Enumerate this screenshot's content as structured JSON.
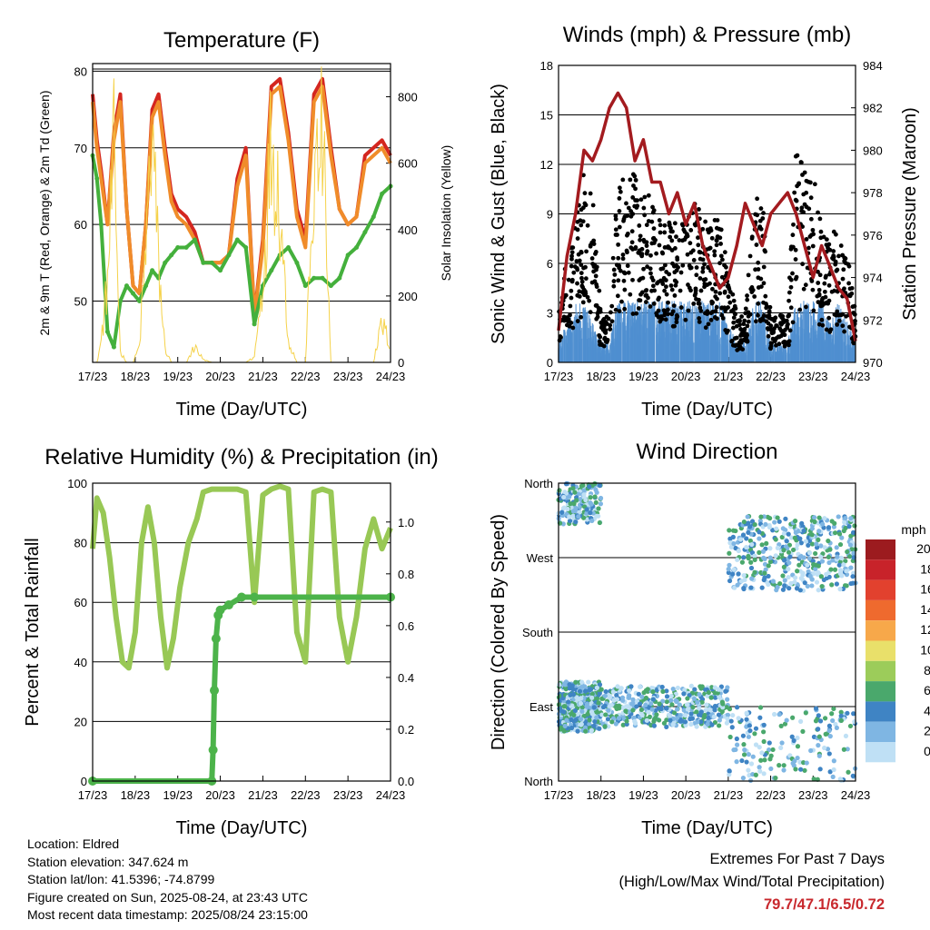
{
  "x_ticks": [
    "17/23",
    "18/23",
    "19/23",
    "20/23",
    "21/23",
    "22/23",
    "23/23",
    "24/23"
  ],
  "x_title": "Time (Day/UTC)",
  "chart_data": [
    {
      "type": "line",
      "title": "Temperature (F)",
      "xlabel": "Time (Day/UTC)",
      "ylabel": "2m & 9m T (Red, Orange) & 2m Td (Green)",
      "y2label": "Solar Insolation (Yellow)",
      "ylim": [
        42,
        81
      ],
      "y2lim": [
        0,
        900
      ],
      "yticks": [
        50,
        60,
        70,
        80
      ],
      "y2ticks": [
        0,
        200,
        400,
        600,
        800
      ],
      "x": [
        0,
        0.1,
        0.2,
        0.35,
        0.5,
        0.65,
        0.8,
        0.95,
        1.1,
        1.25,
        1.4,
        1.55,
        1.7,
        1.85,
        2.0,
        2.2,
        2.4,
        2.6,
        2.8,
        3.0,
        3.2,
        3.4,
        3.6,
        3.8,
        4.0,
        4.2,
        4.4,
        4.6,
        4.8,
        5.0,
        5.2,
        5.4,
        5.6,
        5.8,
        6.0,
        6.2,
        6.4,
        6.6,
        6.8,
        7.0
      ],
      "series": [
        {
          "name": "2m T",
          "color": "#d4261f",
          "values": [
            77,
            71,
            67,
            60,
            72,
            77,
            62,
            52,
            51,
            60,
            75,
            77,
            70,
            64,
            62,
            61,
            59,
            55,
            55,
            55,
            56,
            66,
            70,
            48,
            58,
            78,
            79,
            72,
            62,
            58,
            77,
            79,
            70,
            62,
            60,
            61,
            69,
            70,
            71,
            69
          ]
        },
        {
          "name": "9m T",
          "color": "#f08c2a",
          "values": [
            76,
            70,
            66,
            60,
            71,
            76,
            62,
            52,
            51,
            60,
            74,
            76,
            69,
            63,
            61,
            60,
            58,
            55,
            55,
            55,
            56,
            65,
            69,
            48,
            57,
            77,
            78,
            71,
            61,
            57,
            76,
            78,
            69,
            62,
            60,
            61,
            68,
            69,
            70,
            68
          ]
        },
        {
          "name": "2m Td",
          "color": "#44b03c",
          "values": [
            69,
            66,
            60,
            46,
            44,
            50,
            52,
            51,
            50,
            52,
            54,
            53,
            55,
            56,
            57,
            57,
            58,
            55,
            55,
            54,
            56,
            58,
            57,
            47,
            52,
            54,
            56,
            57,
            55,
            52,
            53,
            53,
            52,
            53,
            56,
            57,
            59,
            61,
            64,
            65
          ]
        },
        {
          "name": "Solar Insolation",
          "color": "#f5d24a",
          "axis": "y2",
          "values": [
            0,
            0,
            80,
            300,
            780,
            40,
            0,
            0,
            60,
            420,
            880,
            360,
            50,
            0,
            0,
            0,
            60,
            10,
            0,
            0,
            0,
            0,
            0,
            20,
            300,
            850,
            600,
            80,
            0,
            0,
            650,
            850,
            0,
            0,
            0,
            0,
            0,
            0,
            150,
            60
          ]
        }
      ]
    },
    {
      "type": "line",
      "title": "Winds (mph) & Pressure (mb)",
      "xlabel": "Time (Day/UTC)",
      "ylabel": "Sonic Wind & Gust (Blue, Black)",
      "y2label": "Station Pressure (Maroon)",
      "ylim": [
        0,
        18
      ],
      "y2lim": [
        970,
        984
      ],
      "yticks": [
        0,
        3,
        6,
        9,
        12,
        15,
        18
      ],
      "y2ticks": [
        970,
        972,
        974,
        976,
        978,
        980,
        982,
        984
      ],
      "x": [
        0,
        0.2,
        0.4,
        0.6,
        0.8,
        1.0,
        1.2,
        1.4,
        1.6,
        1.8,
        2.0,
        2.2,
        2.4,
        2.6,
        2.8,
        3.0,
        3.2,
        3.4,
        3.6,
        3.8,
        4.0,
        4.2,
        4.4,
        4.6,
        4.8,
        5.0,
        5.2,
        5.4,
        5.6,
        5.8,
        6.0,
        6.2,
        6.4,
        6.6,
        6.8,
        7.0
      ],
      "series": [
        {
          "name": "Sonic Wind",
          "color": "#4f8fd0",
          "values": [
            1,
            2,
            3,
            3,
            2,
            1,
            1,
            3,
            3,
            3,
            3,
            3,
            3,
            3,
            3,
            3,
            3,
            3,
            3,
            3,
            2,
            1,
            1,
            3,
            3,
            1,
            1,
            1,
            3,
            3,
            3,
            3,
            2,
            3,
            2,
            1
          ]
        },
        {
          "name": "Gust",
          "color": "#000000",
          "values": [
            2,
            5,
            6,
            8,
            7,
            2,
            2,
            8,
            8,
            8,
            7,
            7,
            6,
            6,
            6,
            6,
            7,
            6,
            6,
            6,
            4,
            2,
            2,
            7,
            7,
            2,
            2,
            2,
            9,
            9,
            8,
            6,
            5,
            6,
            5,
            2
          ]
        },
        {
          "name": "Station Pressure",
          "color": "#a31b1f",
          "axis": "y2",
          "values": [
            971.5,
            975,
            977,
            980,
            979.5,
            980.5,
            982,
            982.7,
            982,
            979.5,
            980.5,
            978.5,
            978.5,
            977,
            978,
            976.5,
            977.5,
            975.5,
            974.5,
            973.5,
            974,
            975.5,
            977.5,
            976.5,
            975.5,
            977,
            977.5,
            978,
            977,
            975.5,
            974,
            975.5,
            974.5,
            973.5,
            973,
            971
          ]
        }
      ]
    },
    {
      "type": "line",
      "title": "Relative Humidity (%) & Precipitation (in)",
      "xlabel": "Time (Day/UTC)",
      "ylabel": "Percent & Total Rainfall",
      "ylim": [
        0,
        100
      ],
      "y2lim": [
        0,
        1.15
      ],
      "yticks": [
        0,
        20,
        40,
        60,
        80,
        100
      ],
      "y2ticks": [
        0,
        0.2,
        0.4,
        0.6,
        0.8,
        1.0
      ],
      "x": [
        0,
        0.1,
        0.25,
        0.4,
        0.55,
        0.7,
        0.85,
        1.0,
        1.15,
        1.3,
        1.45,
        1.6,
        1.75,
        1.9,
        2.05,
        2.25,
        2.45,
        2.6,
        2.8,
        3.0,
        3.2,
        3.4,
        3.6,
        3.8,
        4.0,
        4.2,
        4.4,
        4.6,
        4.8,
        5.0,
        5.2,
        5.4,
        5.6,
        5.8,
        6.0,
        6.2,
        6.4,
        6.6,
        6.8,
        7.0
      ],
      "series": [
        {
          "name": "Relative Humidity",
          "color": "#98c855",
          "values": [
            78,
            95,
            90,
            75,
            55,
            40,
            38,
            50,
            80,
            92,
            80,
            55,
            38,
            48,
            65,
            80,
            88,
            97,
            98,
            98,
            98,
            98,
            97,
            60,
            96,
            98,
            99,
            98,
            50,
            40,
            97,
            98,
            97,
            55,
            40,
            55,
            78,
            88,
            78,
            85
          ]
        },
        {
          "name": "Total Precipitation",
          "color": "#4cb34a",
          "axis": "y2",
          "x": [
            0,
            2.8,
            2.83,
            2.86,
            2.9,
            2.95,
            3.0,
            3.2,
            3.5,
            3.8,
            7.0
          ],
          "values": [
            0,
            0,
            0.12,
            0.35,
            0.55,
            0.64,
            0.66,
            0.68,
            0.71,
            0.71,
            0.71
          ]
        }
      ]
    },
    {
      "type": "scatter",
      "title": "Wind Direction",
      "xlabel": "Time (Day/UTC)",
      "ylabel": "Direction (Colored By Speed)",
      "yticks": [
        "North",
        "East",
        "South",
        "West",
        "North"
      ],
      "ylim": [
        0,
        360
      ],
      "colorbar": {
        "title": "mph",
        "labels": [
          "20+",
          "18",
          "16",
          "14",
          "12",
          "10",
          "8",
          "6",
          "4",
          "2",
          "0"
        ],
        "colors": [
          "#9c1b1f",
          "#c8232a",
          "#e2412e",
          "#ef6a2e",
          "#f7a84a",
          "#e9e06a",
          "#9ccc5a",
          "#4aa86c",
          "#3f84c4",
          "#7fb6e3",
          "#bfe0f5"
        ]
      },
      "series": [
        {
          "name": "direction",
          "x_range": [
            0,
            7
          ],
          "bands": [
            {
              "x": [
                0,
                1.0
              ],
              "dir": [
                60,
                120
              ],
              "density": "high"
            },
            {
              "x": [
                0,
                1.0
              ],
              "dir": [
                310,
                360
              ],
              "density": "medium"
            },
            {
              "x": [
                1.0,
                4.0
              ],
              "dir": [
                65,
                115
              ],
              "density": "high"
            },
            {
              "x": [
                4.0,
                7.0
              ],
              "dir": [
                230,
                320
              ],
              "density": "high"
            },
            {
              "x": [
                4.0,
                7.0
              ],
              "dir": [
                0,
                90
              ],
              "density": "medium"
            }
          ]
        }
      ]
    }
  ],
  "info": {
    "location": "Location: Eldred",
    "elevation": "Station elevation: 347.624 m",
    "latlon": "Station lat/lon: 41.5396; -74.8799",
    "created": "Figure created on Sun, 2025-08-24, at 23:43 UTC",
    "timestamp": "Most recent data timestamp: 2025/08/24 23:15:00"
  },
  "extremes": {
    "line1": "Extremes For Past 7 Days",
    "line2": "(High/Low/Max Wind/Total Precipitation)",
    "values": "79.7/47.1/6.5/0.72"
  }
}
